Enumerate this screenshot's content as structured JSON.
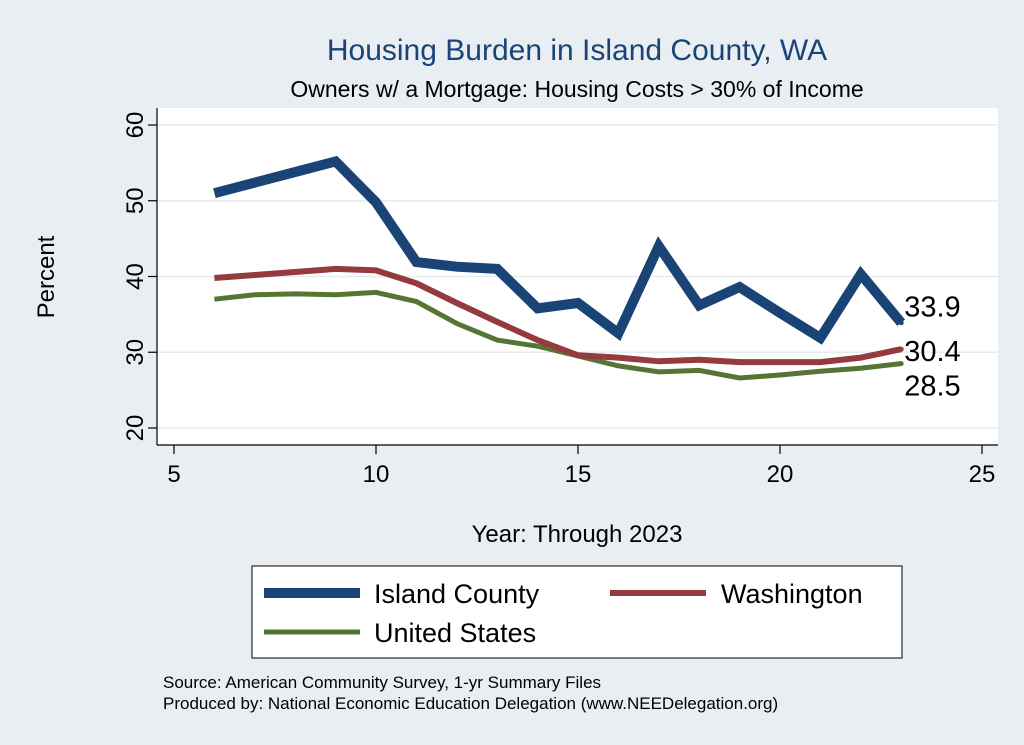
{
  "chart_data": {
    "type": "line",
    "title": "Housing Burden in Island County, WA",
    "subtitle": "Owners w/ a Mortgage: Housing Costs > 30% of Income",
    "xlabel": "Year: Through 2023",
    "ylabel": "Percent",
    "xlim": [
      5,
      25
    ],
    "ylim": [
      20,
      60
    ],
    "xticks": [
      "5",
      "10",
      "15",
      "20",
      "25"
    ],
    "yticks": [
      "20",
      "30",
      "40",
      "50",
      "60"
    ],
    "grid": true,
    "series": [
      {
        "name": "Island County",
        "color": "#1a4475",
        "end_label": "33.9",
        "x": [
          6,
          7,
          8,
          9,
          10,
          11,
          12,
          13,
          14,
          15,
          16,
          17,
          18,
          19,
          20,
          21,
          22,
          23
        ],
        "values": [
          51.0,
          52.4,
          53.8,
          55.2,
          49.8,
          41.9,
          41.3,
          41.0,
          35.8,
          36.5,
          32.5,
          44.0,
          36.2,
          38.6,
          35.2,
          31.9,
          40.3,
          33.9
        ]
      },
      {
        "name": "Washington",
        "color": "#953a3f",
        "end_label": "30.4",
        "x": [
          6,
          7,
          8,
          9,
          10,
          11,
          12,
          13,
          14,
          15,
          16,
          17,
          18,
          19,
          20,
          21,
          22,
          23
        ],
        "values": [
          39.8,
          40.2,
          40.6,
          41.0,
          40.8,
          39.1,
          36.5,
          34.0,
          31.6,
          29.6,
          29.3,
          28.8,
          29.0,
          28.7,
          28.7,
          28.7,
          29.3,
          30.4
        ]
      },
      {
        "name": "United States",
        "color": "#557534",
        "end_label": "28.5",
        "x": [
          6,
          7,
          8,
          9,
          10,
          11,
          12,
          13,
          14,
          15,
          16,
          17,
          18,
          19,
          20,
          21,
          22,
          23
        ],
        "values": [
          37.0,
          37.6,
          37.7,
          37.6,
          37.9,
          36.7,
          33.8,
          31.6,
          30.8,
          29.5,
          28.2,
          27.4,
          27.6,
          26.6,
          27.0,
          27.5,
          27.9,
          28.5
        ]
      }
    ],
    "legend": [
      "Island County",
      "Washington",
      "United States"
    ],
    "legend_position": "bottom"
  },
  "source_lines": [
    "Source: American Community Survey, 1-yr Summary Files",
    "Produced by: National Economic Education Delegation (www.NEEDelegation.org)"
  ],
  "colors": {
    "background": "#e9eef3",
    "plot_background": "#ffffff",
    "title": "#1a4475"
  }
}
